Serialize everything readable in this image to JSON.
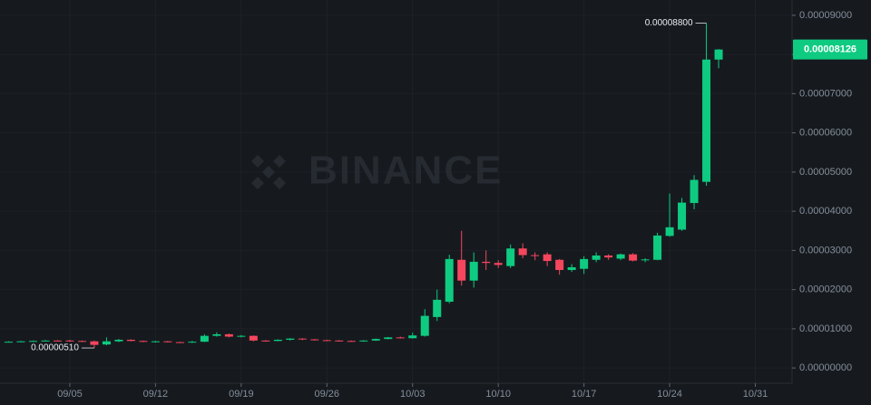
{
  "chart_data": {
    "type": "candlestick",
    "watermark": "BINANCE",
    "x": [
      "08/31",
      "09/01",
      "09/02",
      "09/03",
      "09/04",
      "09/05",
      "09/06",
      "09/07",
      "09/08",
      "09/09",
      "09/10",
      "09/11",
      "09/12",
      "09/13",
      "09/14",
      "09/15",
      "09/16",
      "09/17",
      "09/18",
      "09/19",
      "09/20",
      "09/21",
      "09/22",
      "09/23",
      "09/24",
      "09/25",
      "09/26",
      "09/27",
      "09/28",
      "09/29",
      "09/30",
      "10/01",
      "10/02",
      "10/03",
      "10/04",
      "10/05",
      "10/06",
      "10/07",
      "10/08",
      "10/09",
      "10/10",
      "10/11",
      "10/12",
      "10/13",
      "10/14",
      "10/15",
      "10/16",
      "10/17",
      "10/18",
      "10/19",
      "10/20",
      "10/21",
      "10/22",
      "10/23",
      "10/24",
      "10/25",
      "10/26",
      "10/27",
      "10/28"
    ],
    "open": [
      6.6e-06,
      6.7e-06,
      6.8e-06,
      6.9e-06,
      7e-06,
      7e-06,
      6.9e-06,
      6.8e-06,
      6e-06,
      6.8e-06,
      7.2e-06,
      6.9e-06,
      6.7e-06,
      6.8e-06,
      6.6e-06,
      6.5e-06,
      6.7e-06,
      8.2e-06,
      8.6e-06,
      8e-06,
      8.2e-06,
      7e-06,
      6.9e-06,
      7.2e-06,
      7.5e-06,
      7.3e-06,
      7.1e-06,
      7e-06,
      6.9e-06,
      6.8e-06,
      7e-06,
      7.4e-06,
      7.8e-06,
      7.6e-06,
      8.2e-06,
      1.3e-05,
      1.69e-05,
      2.76e-05,
      2.23e-05,
      2.71e-05,
      2.68e-05,
      2.6e-05,
      3.05e-05,
      2.88e-05,
      2.9e-05,
      2.76e-05,
      2.5e-05,
      2.53e-05,
      2.76e-05,
      2.87e-05,
      2.79e-05,
      2.9e-05,
      2.75e-05,
      2.76e-05,
      3.37e-05,
      3.53e-05,
      4.21e-05,
      4.75e-05,
      7.87e-05
    ],
    "high": [
      6.8e-06,
      6.9e-06,
      7e-06,
      7.1e-06,
      7.1e-06,
      7.2e-06,
      7e-06,
      7e-06,
      7.8e-06,
      7.4e-06,
      7.3e-06,
      7e-06,
      6.9e-06,
      6.9e-06,
      6.7e-06,
      6.9e-06,
      8.6e-06,
      9.1e-06,
      8.8e-06,
      8.4e-06,
      8.3e-06,
      7.1e-06,
      7.3e-06,
      7.6e-06,
      7.6e-06,
      7.4e-06,
      7.2e-06,
      7.1e-06,
      7e-06,
      7.1e-06,
      7.5e-06,
      7.9e-06,
      8e-06,
      9e-06,
      1.5e-05,
      2e-05,
      2.89e-05,
      3.5e-05,
      2.95e-05,
      3e-05,
      2.75e-05,
      3.15e-05,
      3.18e-05,
      2.95e-05,
      2.95e-05,
      2.78e-05,
      2.65e-05,
      2.85e-05,
      2.95e-05,
      2.9e-05,
      2.92e-05,
      2.93e-05,
      2.8e-05,
      3.45e-05,
      4.45e-05,
      4.34e-05,
      4.92e-05,
      8.8e-05,
      8.14e-05
    ],
    "low": [
      6.5e-06,
      6.6e-06,
      6.7e-06,
      6.8e-06,
      6.8e-06,
      6.7e-06,
      6.6e-06,
      5.1e-06,
      5.8e-06,
      6.6e-06,
      6.8e-06,
      6.6e-06,
      6.5e-06,
      6.5e-06,
      6.4e-06,
      6.4e-06,
      6.6e-06,
      8e-06,
      7.8e-06,
      7.8e-06,
      6.8e-06,
      6.7e-06,
      6.8e-06,
      7e-06,
      7.1e-06,
      7e-06,
      6.9e-06,
      6.8e-06,
      6.7e-06,
      6.7e-06,
      6.9e-06,
      7.3e-06,
      7.5e-06,
      7.5e-06,
      8e-06,
      1.2e-05,
      1.65e-05,
      2.1e-05,
      2.05e-05,
      2.5e-05,
      2.55e-05,
      2.55e-05,
      2.8e-05,
      2.75e-05,
      2.6e-05,
      2.38e-05,
      2.45e-05,
      2.4e-05,
      2.7e-05,
      2.76e-05,
      2.75e-05,
      2.72e-05,
      2.7e-05,
      2.75e-05,
      3.35e-05,
      3.5e-05,
      4.05e-05,
      4.65e-05,
      7.65e-05
    ],
    "close": [
      6.7e-06,
      6.8e-06,
      6.9e-06,
      7e-06,
      6.9e-06,
      6.8e-06,
      6.8e-06,
      5.9e-06,
      6.8e-06,
      7.2e-06,
      6.9e-06,
      6.7e-06,
      6.8e-06,
      6.6e-06,
      6.5e-06,
      6.7e-06,
      8.2e-06,
      8.6e-06,
      8e-06,
      8.2e-06,
      7e-06,
      6.9e-06,
      7.2e-06,
      7.5e-06,
      7.3e-06,
      7.1e-06,
      7e-06,
      6.9e-06,
      6.8e-06,
      7e-06,
      7.4e-06,
      7.8e-06,
      7.6e-06,
      8.3e-06,
      1.33e-05,
      1.74e-05,
      2.78e-05,
      2.23e-05,
      2.71e-05,
      2.68e-05,
      2.63e-05,
      3.05e-05,
      2.88e-05,
      2.86e-05,
      2.73e-05,
      2.5e-05,
      2.57e-05,
      2.78e-05,
      2.87e-05,
      2.82e-05,
      2.9e-05,
      2.74e-05,
      2.77e-05,
      3.38e-05,
      3.59e-05,
      4.22e-05,
      4.8e-05,
      7.87e-05,
      8.126e-05
    ],
    "up_color": "#0ecb81",
    "down_color": "#f6465d",
    "xlim": [
      "08/30",
      "11/03"
    ],
    "xticks": [
      "09/05",
      "09/12",
      "09/19",
      "09/26",
      "10/03",
      "10/10",
      "10/17",
      "10/24",
      "10/31"
    ],
    "ylim": [
      -3.9e-06,
      9.39e-05
    ],
    "yticks": [
      {
        "value": 0,
        "label": "0.00000000"
      },
      {
        "value": 1e-05,
        "label": "0.00001000"
      },
      {
        "value": 2e-05,
        "label": "0.00002000"
      },
      {
        "value": 3e-05,
        "label": "0.00003000"
      },
      {
        "value": 4e-05,
        "label": "0.00004000"
      },
      {
        "value": 5e-05,
        "label": "0.00005000"
      },
      {
        "value": 6e-05,
        "label": "0.00006000"
      },
      {
        "value": 7e-05,
        "label": "0.00007000"
      },
      {
        "value": 8e-05,
        "label": "0.00008000"
      },
      {
        "value": 9e-05,
        "label": "0.00009000"
      }
    ],
    "grid": true,
    "high_marker": {
      "x": "10/27",
      "value": 8.8e-05,
      "label": "0.00008800"
    },
    "low_marker": {
      "x": "09/07",
      "value": 5.1e-06,
      "label": "0.00000510"
    },
    "last_price": {
      "value": 8.126e-05,
      "label": "0.00008126"
    }
  }
}
